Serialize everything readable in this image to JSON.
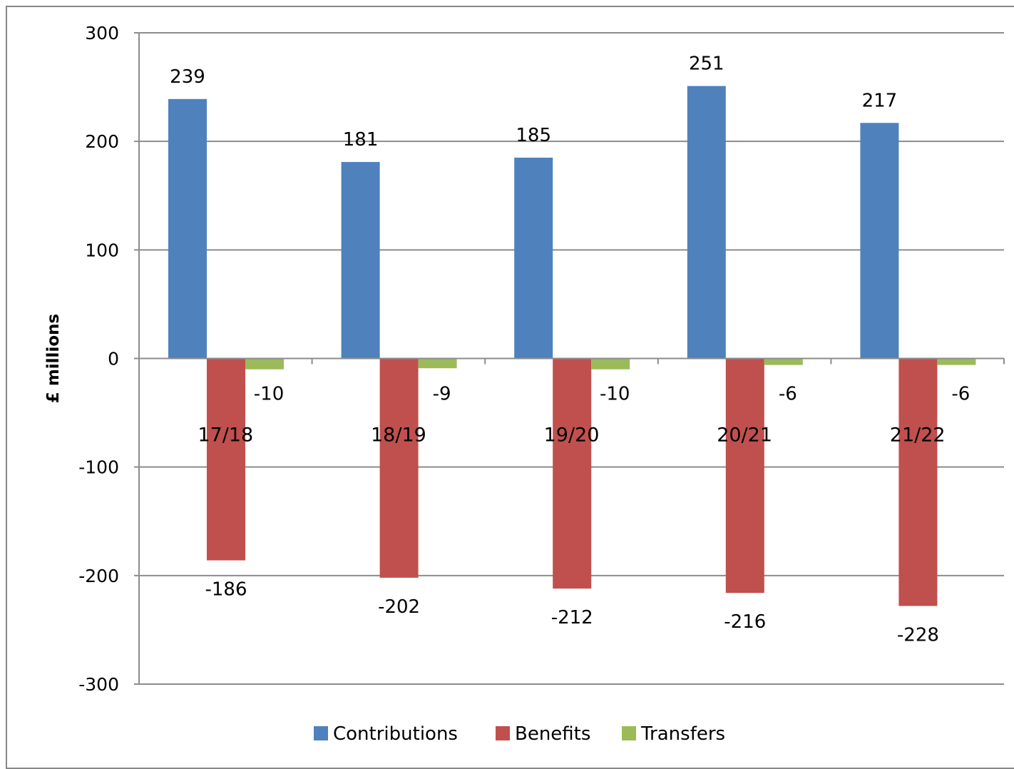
{
  "chart_data": {
    "type": "bar",
    "title": "",
    "xlabel": "",
    "ylabel": "£ millions",
    "categories": [
      "17/18",
      "18/19",
      "19/20",
      "20/21",
      "21/22"
    ],
    "series": [
      {
        "name": "Contributions",
        "color": "#4F81BD",
        "values": [
          239,
          181,
          185,
          251,
          217
        ]
      },
      {
        "name": "Benefits",
        "color": "#C0504D",
        "values": [
          -186,
          -202,
          -212,
          -216,
          -228
        ]
      },
      {
        "name": "Transfers",
        "color": "#9BBB59",
        "values": [
          -10,
          -9,
          -10,
          -6,
          -6
        ]
      }
    ],
    "ylim": [
      -300,
      300
    ],
    "yticks": [
      300,
      200,
      100,
      0,
      -100,
      -200,
      -300
    ],
    "grid": true,
    "legend_position": "bottom",
    "data_labels": true
  }
}
